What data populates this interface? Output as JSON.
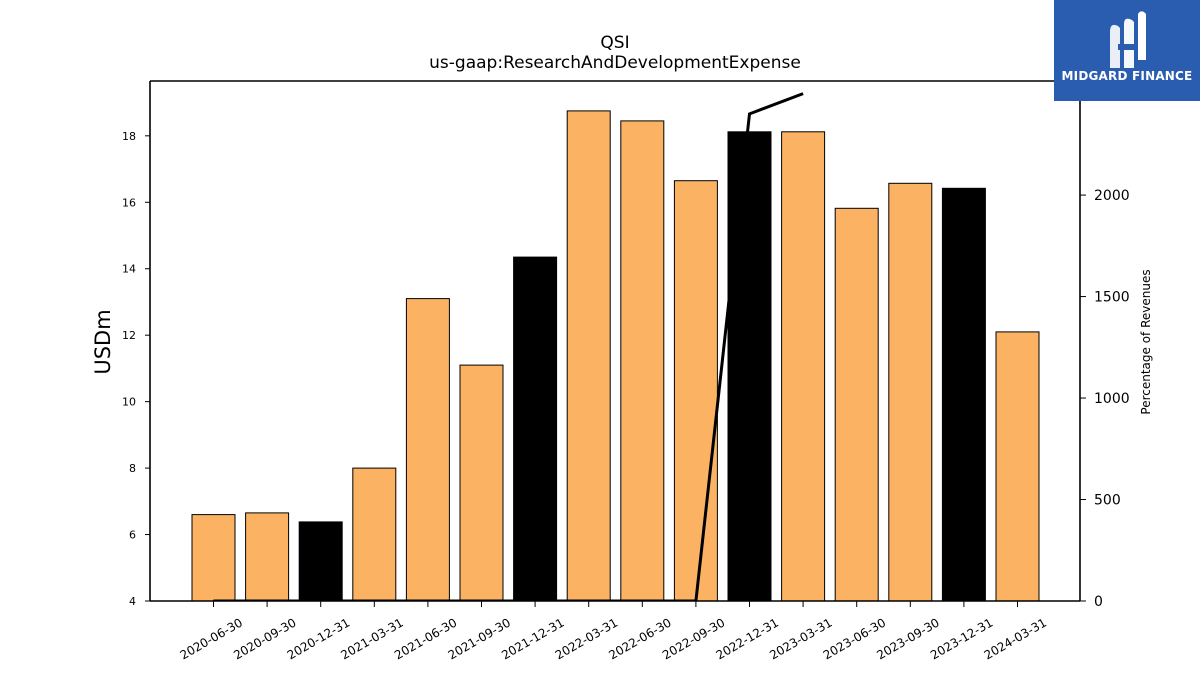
{
  "brand": {
    "name": "MIDGARD FINANCE",
    "color": "#2a5db0"
  },
  "chart_data": {
    "type": "bar",
    "title": "QSI",
    "subtitle": "us-gaap:ResearchAndDevelopmentExpense",
    "ylabel": "USDm",
    "y2label": "Percentage of Revenues",
    "categories": [
      "2020-06-30",
      "2020-09-30",
      "2020-12-31",
      "2021-03-31",
      "2021-06-30",
      "2021-09-30",
      "2021-12-31",
      "2022-03-31",
      "2022-06-30",
      "2022-09-30",
      "2022-12-31",
      "2023-03-31",
      "2023-06-30",
      "2023-09-30",
      "2023-12-31",
      "2024-03-31"
    ],
    "values": [
      6.6,
      6.65,
      6.38,
      8.0,
      13.1,
      11.1,
      14.35,
      18.75,
      18.45,
      16.65,
      18.12,
      18.12,
      15.82,
      16.57,
      16.42,
      12.1
    ],
    "highlight": [
      false,
      false,
      true,
      false,
      false,
      false,
      true,
      false,
      false,
      false,
      true,
      false,
      false,
      false,
      true,
      false
    ],
    "ylim": [
      4,
      19.65
    ],
    "yticks": [
      4,
      6,
      8,
      10,
      12,
      14,
      16,
      18
    ],
    "y2lim": [
      0,
      2500
    ],
    "y2ticks": [
      0,
      500,
      1000,
      1500,
      2000,
      2500
    ],
    "pct_line": [
      {
        "x": "2020-06-30",
        "y": 0
      },
      {
        "x": "2022-09-30",
        "y": 0
      },
      {
        "x": "2022-12-31",
        "y": 2400
      },
      {
        "x": "2023-03-31",
        "y": 2500
      }
    ],
    "colors": {
      "bar": "#fbb263",
      "highlight": "#000000",
      "line": "#000000"
    },
    "grid": false
  }
}
